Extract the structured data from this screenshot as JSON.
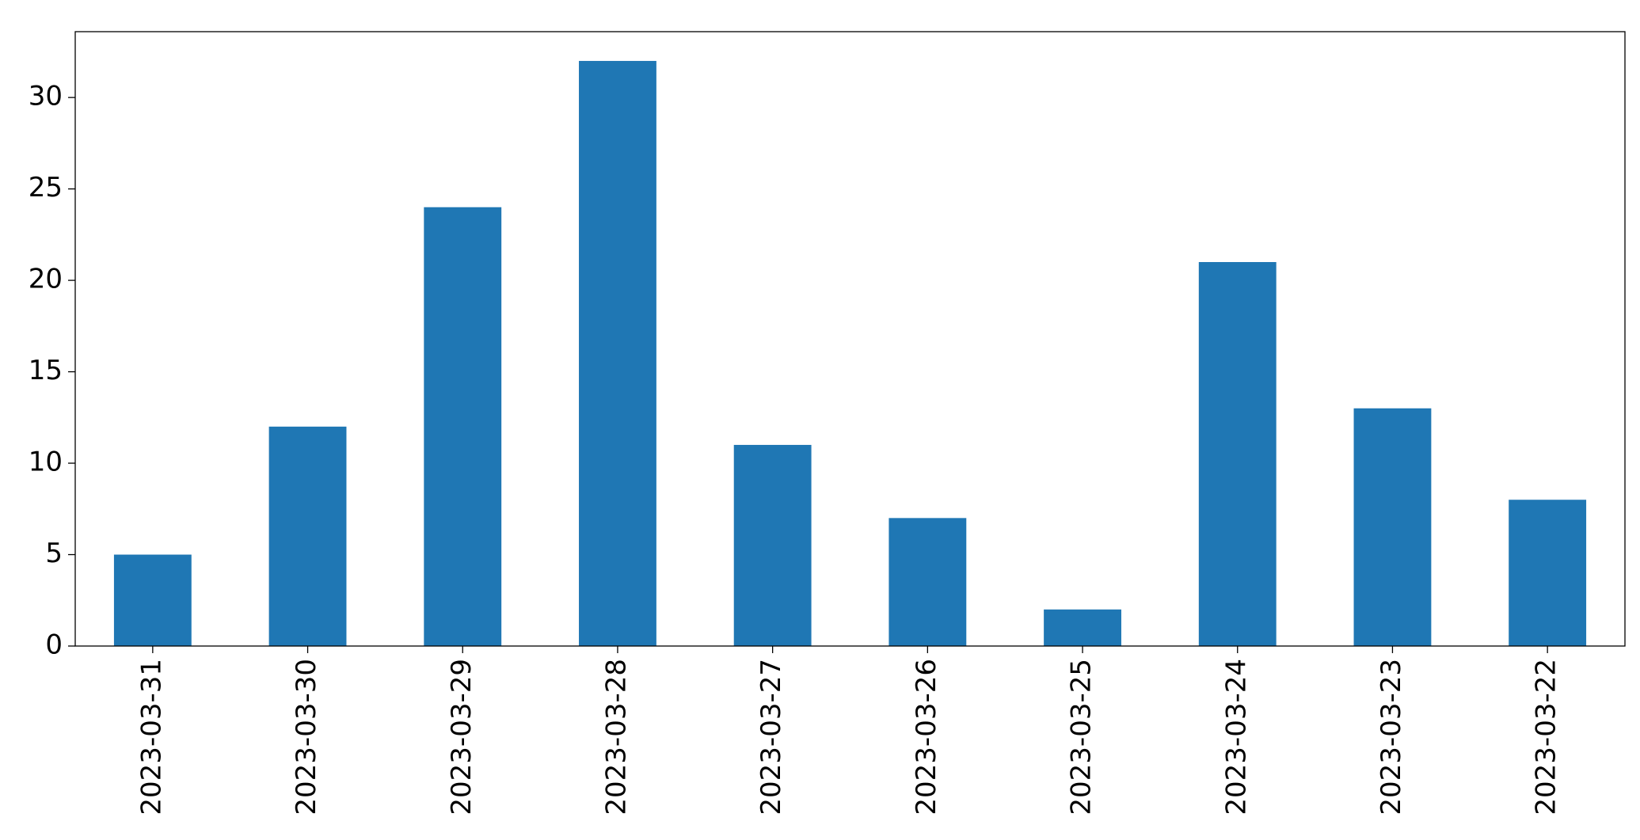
{
  "chart_data": {
    "type": "bar",
    "categories": [
      "2023-03-31",
      "2023-03-30",
      "2023-03-29",
      "2023-03-28",
      "2023-03-27",
      "2023-03-26",
      "2023-03-25",
      "2023-03-24",
      "2023-03-23",
      "2023-03-22"
    ],
    "values": [
      5,
      12,
      24,
      32,
      11,
      7,
      2,
      21,
      13,
      8
    ],
    "color": "#1f77b4",
    "ylim": [
      0,
      33.6
    ],
    "yticks": [
      0,
      5,
      10,
      15,
      20,
      25,
      30
    ],
    "grid": false
  }
}
